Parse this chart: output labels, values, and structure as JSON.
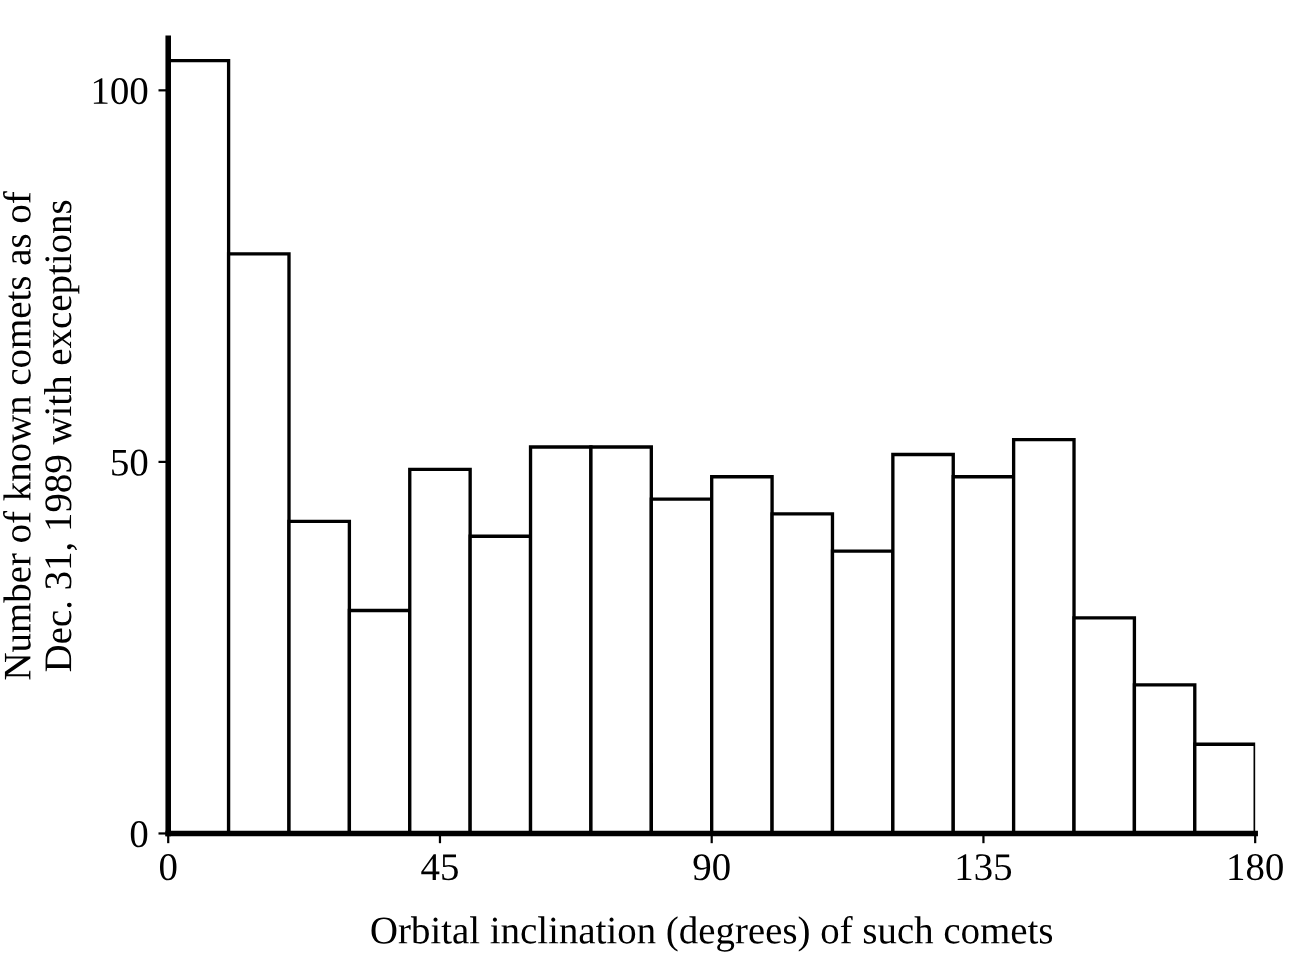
{
  "chart_data": {
    "type": "histogram",
    "xlabel": "Orbital inclination (degrees) of such comets",
    "ylabel": "Number of known comets as of\nDec. 31, 1989 with exceptions",
    "bins": [
      0,
      10,
      20,
      30,
      40,
      50,
      60,
      70,
      80,
      90,
      100,
      110,
      120,
      130,
      140,
      150,
      160,
      170,
      180
    ],
    "values": [
      104,
      78,
      42,
      30,
      49,
      40,
      52,
      52,
      45,
      48,
      43,
      38,
      51,
      48,
      53,
      29,
      20,
      12
    ],
    "color": "#ffffff",
    "xlim": [
      0,
      180
    ],
    "xticks": [
      0,
      45,
      90,
      135,
      180
    ],
    "ylim": [
      0,
      107
    ],
    "yticks": [
      0,
      50,
      100
    ],
    "grid": false
  }
}
